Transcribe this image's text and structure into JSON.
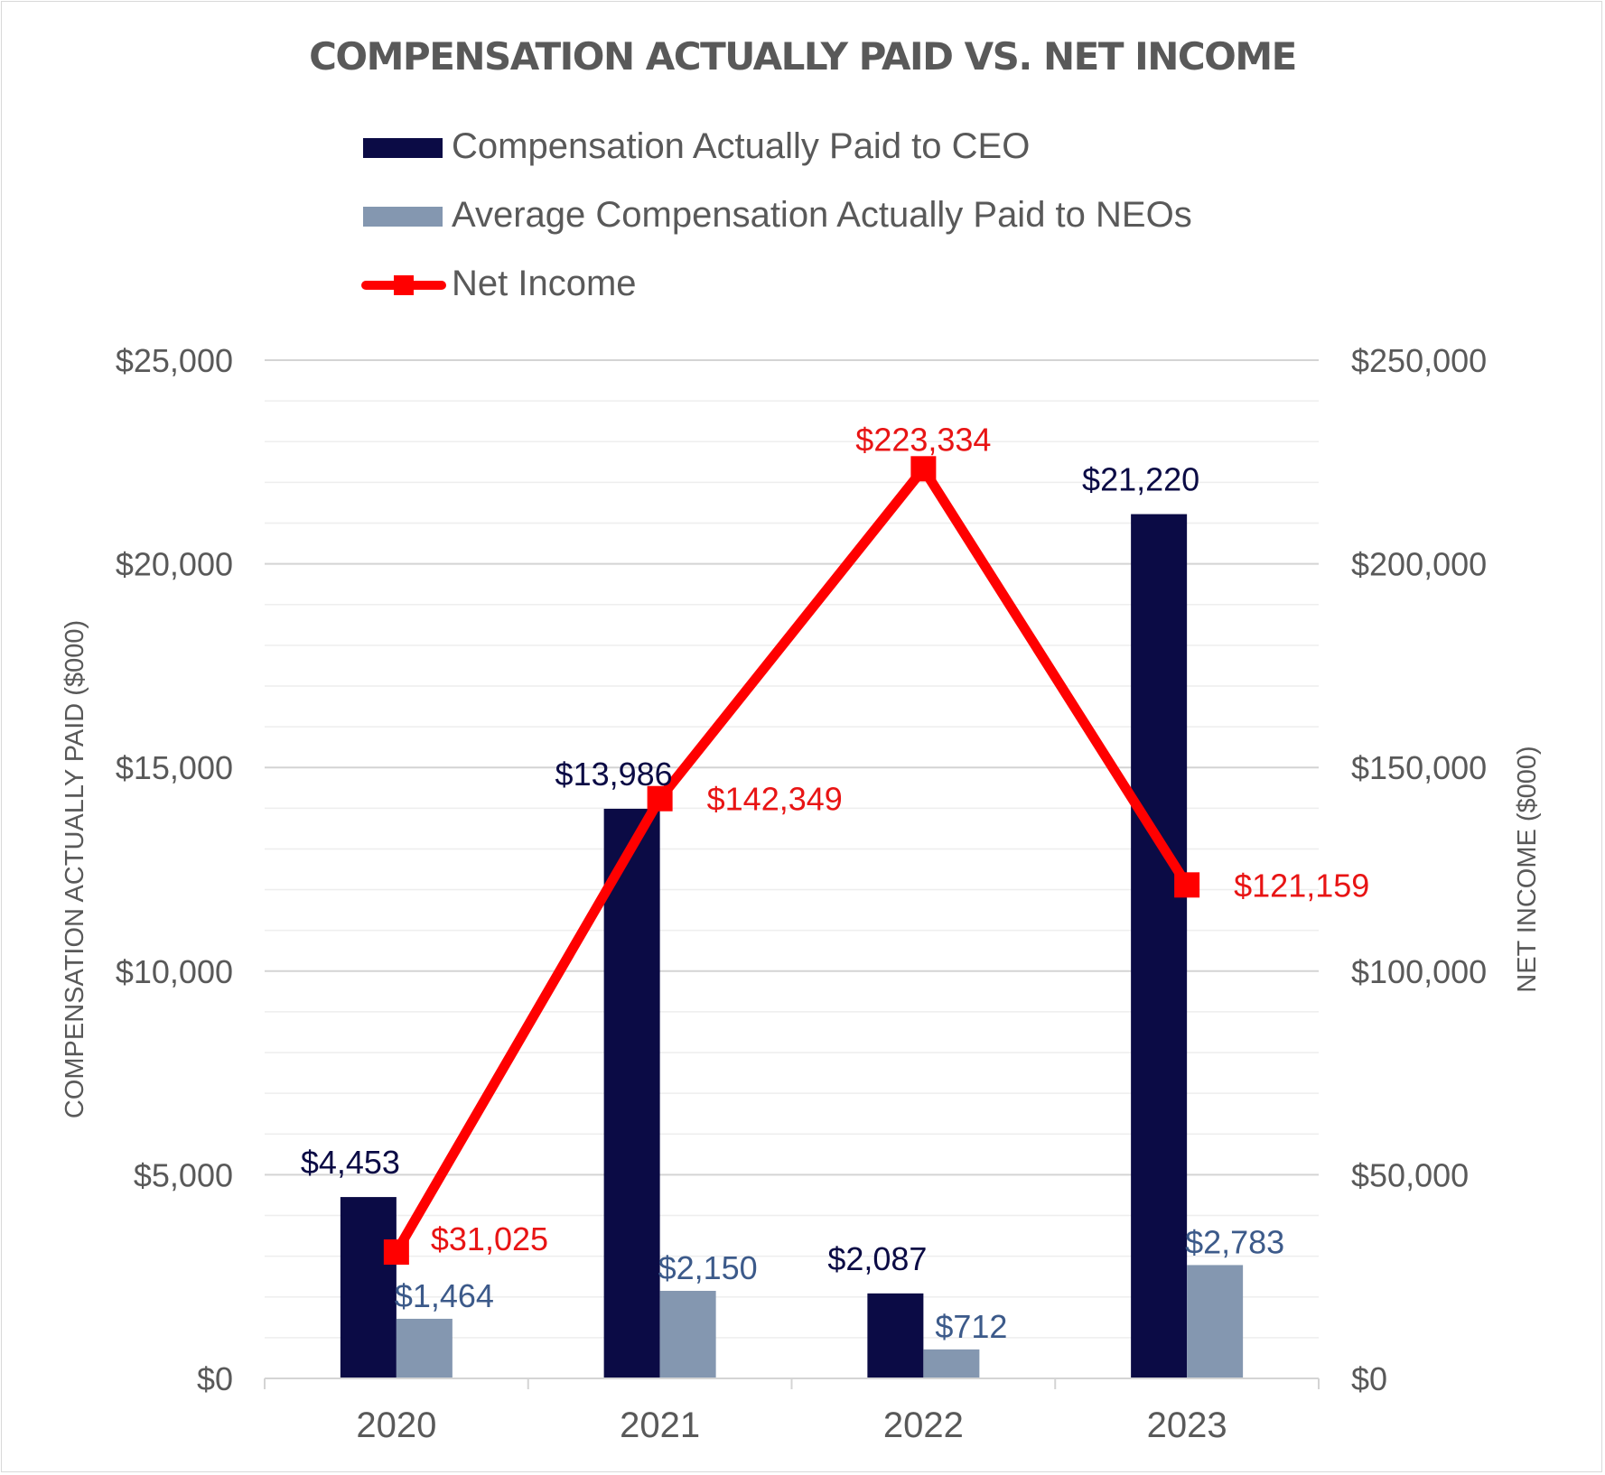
{
  "chart_data": {
    "type": "bar",
    "title": "COMPENSATION ACTUALLY PAID VS. NET INCOME",
    "categories": [
      "2020",
      "2021",
      "2022",
      "2023"
    ],
    "ylabel": "COMPENSATION ACTUALLY PAID ($000)",
    "y2label": "NET INCOME ($000)",
    "ylim": [
      0,
      25000
    ],
    "y2lim": [
      0,
      250000
    ],
    "yticks": [
      "$0",
      "$5,000",
      "$10,000",
      "$15,000",
      "$20,000",
      "$25,000"
    ],
    "y2ticks": [
      "$0",
      "$50,000",
      "$100,000",
      "$150,000",
      "$200,000",
      "$250,000"
    ],
    "series": [
      {
        "name": "Compensation Actually Paid to CEO",
        "type": "bar",
        "axis": "left",
        "color": "#0b0b45",
        "values": [
          4453,
          13986,
          2087,
          21220
        ],
        "labels": [
          "$4,453",
          "$13,986",
          "$2,087",
          "$21,220"
        ]
      },
      {
        "name": "Average Compensation Actually Paid to NEOs",
        "type": "bar",
        "axis": "left",
        "color": "#8497b0",
        "values": [
          1464,
          2150,
          712,
          2783
        ],
        "labels": [
          "$1,464",
          "$2,150",
          "$712",
          "$2,783"
        ]
      },
      {
        "name": "Net Income",
        "type": "line",
        "axis": "right",
        "color": "#ff0000",
        "values": [
          31025,
          142349,
          223334,
          121159
        ],
        "labels": [
          "$31,025",
          "$142,349",
          "$223,334",
          "$121,159"
        ]
      }
    ],
    "grid": true,
    "legend": "top"
  }
}
